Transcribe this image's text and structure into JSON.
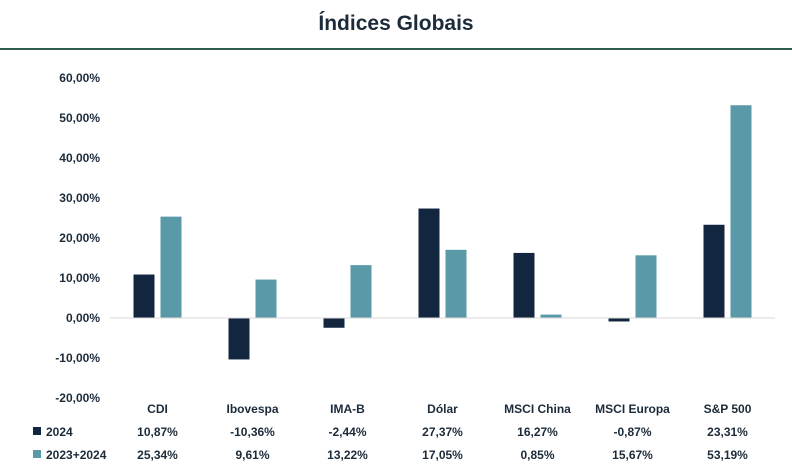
{
  "chart_data": {
    "type": "bar",
    "title": "Índices Globais",
    "categories": [
      "CDI",
      "Ibovespa",
      "IMA-B",
      "Dólar",
      "MSCI China",
      "MSCI Europa",
      "S&P 500"
    ],
    "series": [
      {
        "name": "2024",
        "color": "#13263f",
        "values": [
          10.87,
          -10.36,
          -2.44,
          27.37,
          16.27,
          -0.87,
          23.31
        ],
        "labels": [
          "10,87%",
          "-10,36%",
          "-2,44%",
          "27,37%",
          "16,27%",
          "-0,87%",
          "23,31%"
        ]
      },
      {
        "name": "2023+2024",
        "color": "#5a9aa8",
        "values": [
          25.34,
          9.61,
          13.22,
          17.05,
          0.85,
          15.67,
          53.19
        ],
        "labels": [
          "25,34%",
          "9,61%",
          "13,22%",
          "17,05%",
          "0,85%",
          "15,67%",
          "53,19%"
        ]
      }
    ],
    "ylim": [
      -20,
      60
    ],
    "yticks": [
      60,
      50,
      40,
      30,
      20,
      10,
      0,
      -10,
      -20
    ],
    "ytick_labels": [
      "60,00%",
      "50,00%",
      "40,00%",
      "30,00%",
      "20,00%",
      "10,00%",
      "0,00%",
      "-10,00%",
      "-20,00%"
    ],
    "grid": false,
    "legend": "data-table-bottom"
  }
}
